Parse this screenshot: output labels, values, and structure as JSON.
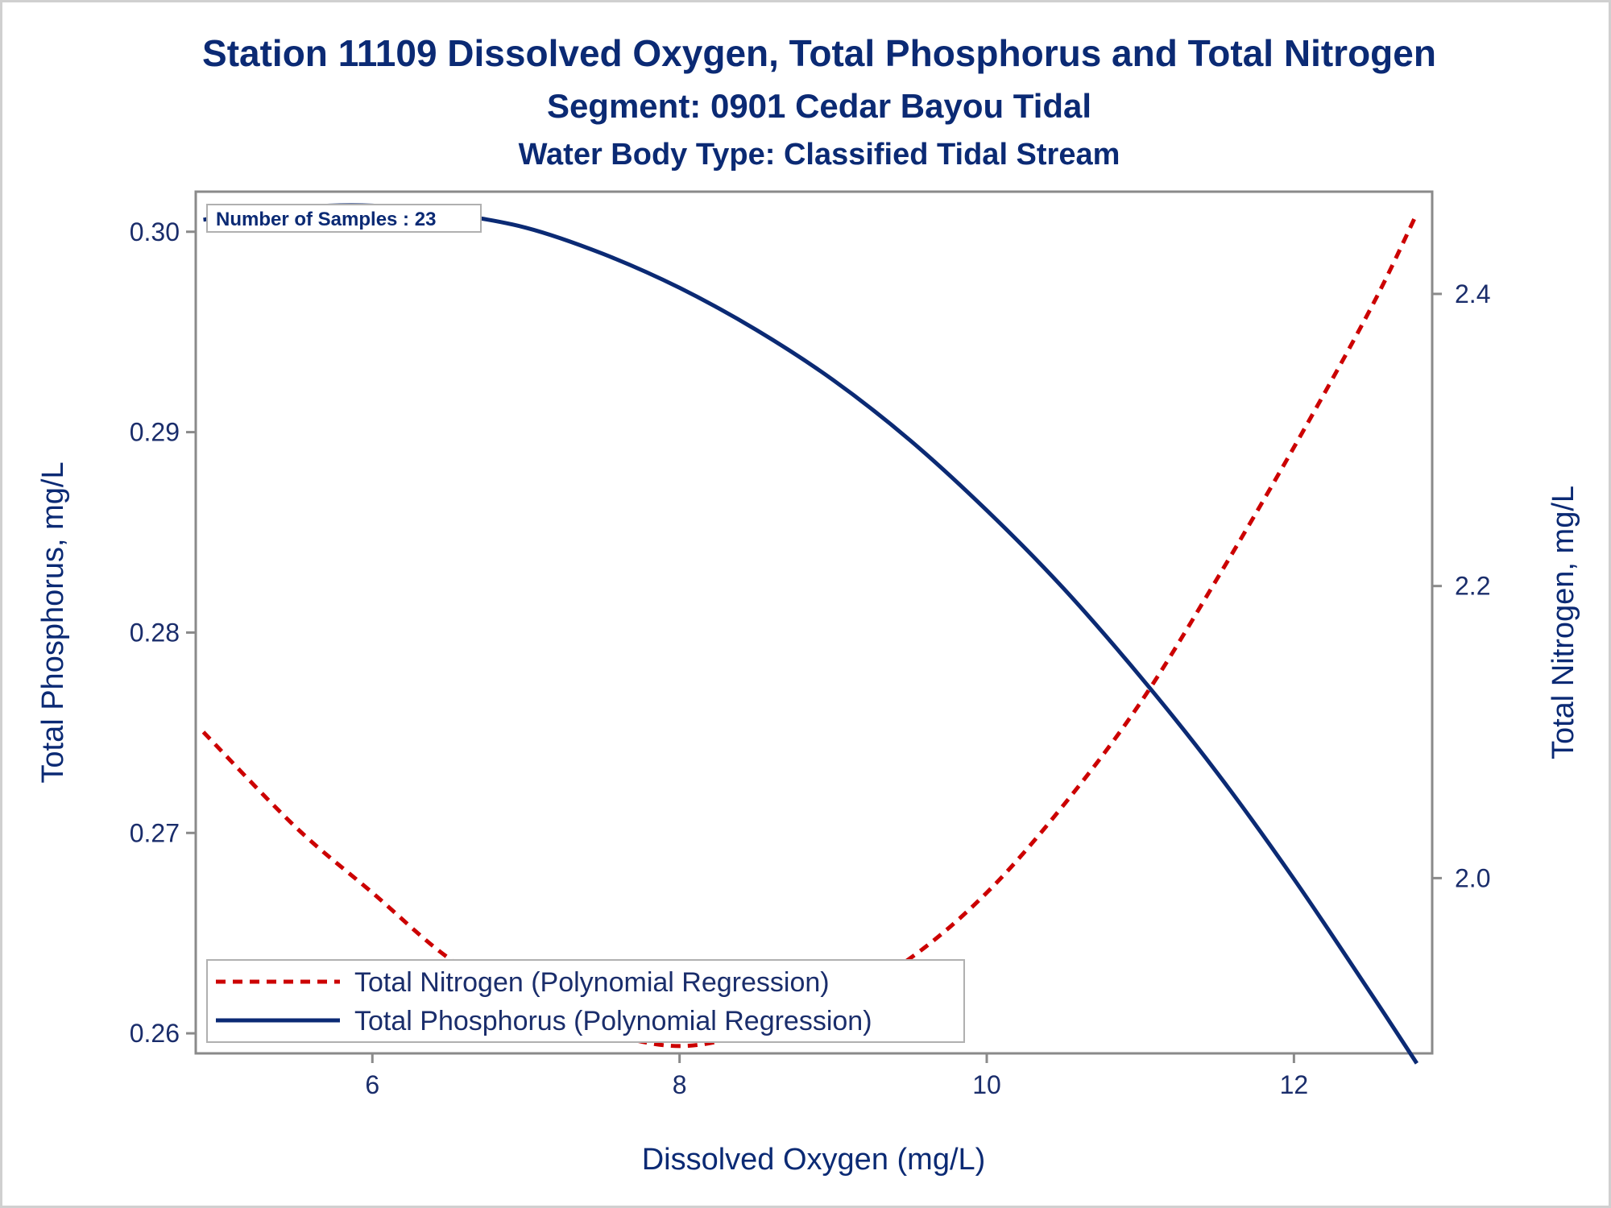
{
  "chart_data": {
    "type": "line",
    "title": "Station 11109  Dissolved Oxygen, Total Phosphorus and Total Nitrogen",
    "subtitle": "Segment: 0901  Cedar Bayou Tidal",
    "subtitle2": "Water Body Type: Classified Tidal Stream",
    "xlabel": "Dissolved Oxygen (mg/L)",
    "ylabel": "Total Phosphorus, mg/L",
    "y2label": "Total Nitrogen, mg/L",
    "xlim": [
      4.85,
      12.9
    ],
    "ylim": [
      0.259,
      0.302
    ],
    "y2lim": [
      1.88,
      2.47
    ],
    "xticks": [
      "6",
      "8",
      "10",
      "12"
    ],
    "xtick_values": [
      6,
      8,
      10,
      12
    ],
    "yticks": [
      "0.26",
      "0.27",
      "0.28",
      "0.29",
      "0.30"
    ],
    "ytick_values": [
      0.26,
      0.27,
      0.28,
      0.29,
      0.3
    ],
    "y2ticks": [
      "2.0",
      "2.2",
      "2.4"
    ],
    "y2tick_values": [
      2.0,
      2.2,
      2.4
    ],
    "annotation": "Number of Samples : 23",
    "legend_position": "bottom-left",
    "grid": false,
    "series": [
      {
        "name": "Total Nitrogen (Polynomial Regression)",
        "axis": "right",
        "color": "#cc0000",
        "style": "dashed",
        "x": [
          4.9,
          5.5,
          6.0,
          6.5,
          7.0,
          7.5,
          8.0,
          8.5,
          9.0,
          9.5,
          10.0,
          10.5,
          11.0,
          11.5,
          12.0,
          12.5,
          12.8
        ],
        "y": [
          2.1,
          2.035,
          1.99,
          1.945,
          1.915,
          1.895,
          1.885,
          1.895,
          1.915,
          1.945,
          1.99,
          2.05,
          2.12,
          2.205,
          2.295,
          2.39,
          2.455
        ]
      },
      {
        "name": "Total Phosphorus (Polynomial Regression)",
        "axis": "left",
        "color": "#0b2a74",
        "style": "solid",
        "x": [
          4.9,
          5.5,
          6.0,
          6.5,
          7.0,
          7.5,
          8.0,
          8.5,
          9.0,
          9.5,
          10.0,
          10.5,
          11.0,
          11.5,
          12.0,
          12.5,
          12.8
        ],
        "y": [
          0.3006,
          0.3012,
          0.3013,
          0.3009,
          0.3002,
          0.2989,
          0.2972,
          0.2951,
          0.2926,
          0.2896,
          0.2861,
          0.2822,
          0.2778,
          0.273,
          0.2677,
          0.262,
          0.2585
        ]
      }
    ]
  }
}
